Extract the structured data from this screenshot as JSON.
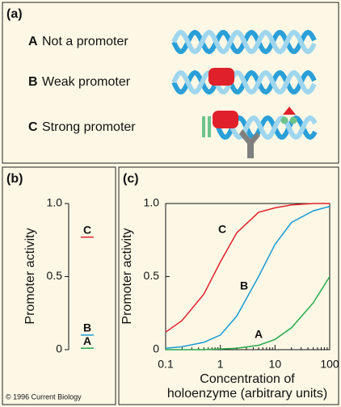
{
  "panel_a": {
    "label": "(a)",
    "rows": [
      {
        "letter": "A",
        "text": "Not a promoter",
        "color": "#27a84a"
      },
      {
        "letter": "B",
        "text": "Weak promoter",
        "color": "#1b9ad6"
      },
      {
        "letter": "C",
        "text": "Strong promoter",
        "color": "#e0202a"
      }
    ]
  },
  "credit": "© 1996 Current Biology",
  "chart_data": [
    {
      "type": "marker",
      "panel_label": "(b)",
      "ylabel": "Promoter activity",
      "categories": [
        "A",
        "B",
        "C"
      ],
      "values": [
        0.01,
        0.1,
        0.77
      ],
      "colors": [
        "#27a84a",
        "#1b9ad6",
        "#e0202a"
      ],
      "ylim": [
        0,
        1
      ],
      "yticks": [
        0,
        0.5,
        {
          "value": 1,
          "label": "1.0"
        }
      ]
    },
    {
      "type": "line",
      "panel_label": "(c)",
      "ylabel": "Promoter activity",
      "xlabel": [
        "Concentration of",
        "holoenzyme (arbitrary units)"
      ],
      "log_x": true,
      "x": [
        0.1,
        0.2,
        0.5,
        1,
        2,
        5,
        10,
        20,
        50,
        100
      ],
      "series": [
        {
          "name": "A",
          "color": "#27a84a",
          "values": [
            0,
            0,
            0,
            0.005,
            0.01,
            0.03,
            0.07,
            0.15,
            0.32,
            0.5
          ]
        },
        {
          "name": "B",
          "color": "#1b9ad6",
          "values": [
            0.01,
            0.02,
            0.05,
            0.1,
            0.23,
            0.5,
            0.72,
            0.87,
            0.95,
            0.98
          ]
        },
        {
          "name": "C",
          "color": "#e0202a",
          "values": [
            0.12,
            0.2,
            0.38,
            0.6,
            0.8,
            0.94,
            0.97,
            0.99,
            1,
            1
          ]
        }
      ],
      "xlim": [
        0.1,
        100
      ],
      "xticks": [
        0.1,
        1,
        10,
        100
      ],
      "ylim": [
        0,
        1
      ],
      "yticks": [
        0,
        0.5,
        {
          "value": 1,
          "label": "1.0"
        }
      ]
    }
  ]
}
